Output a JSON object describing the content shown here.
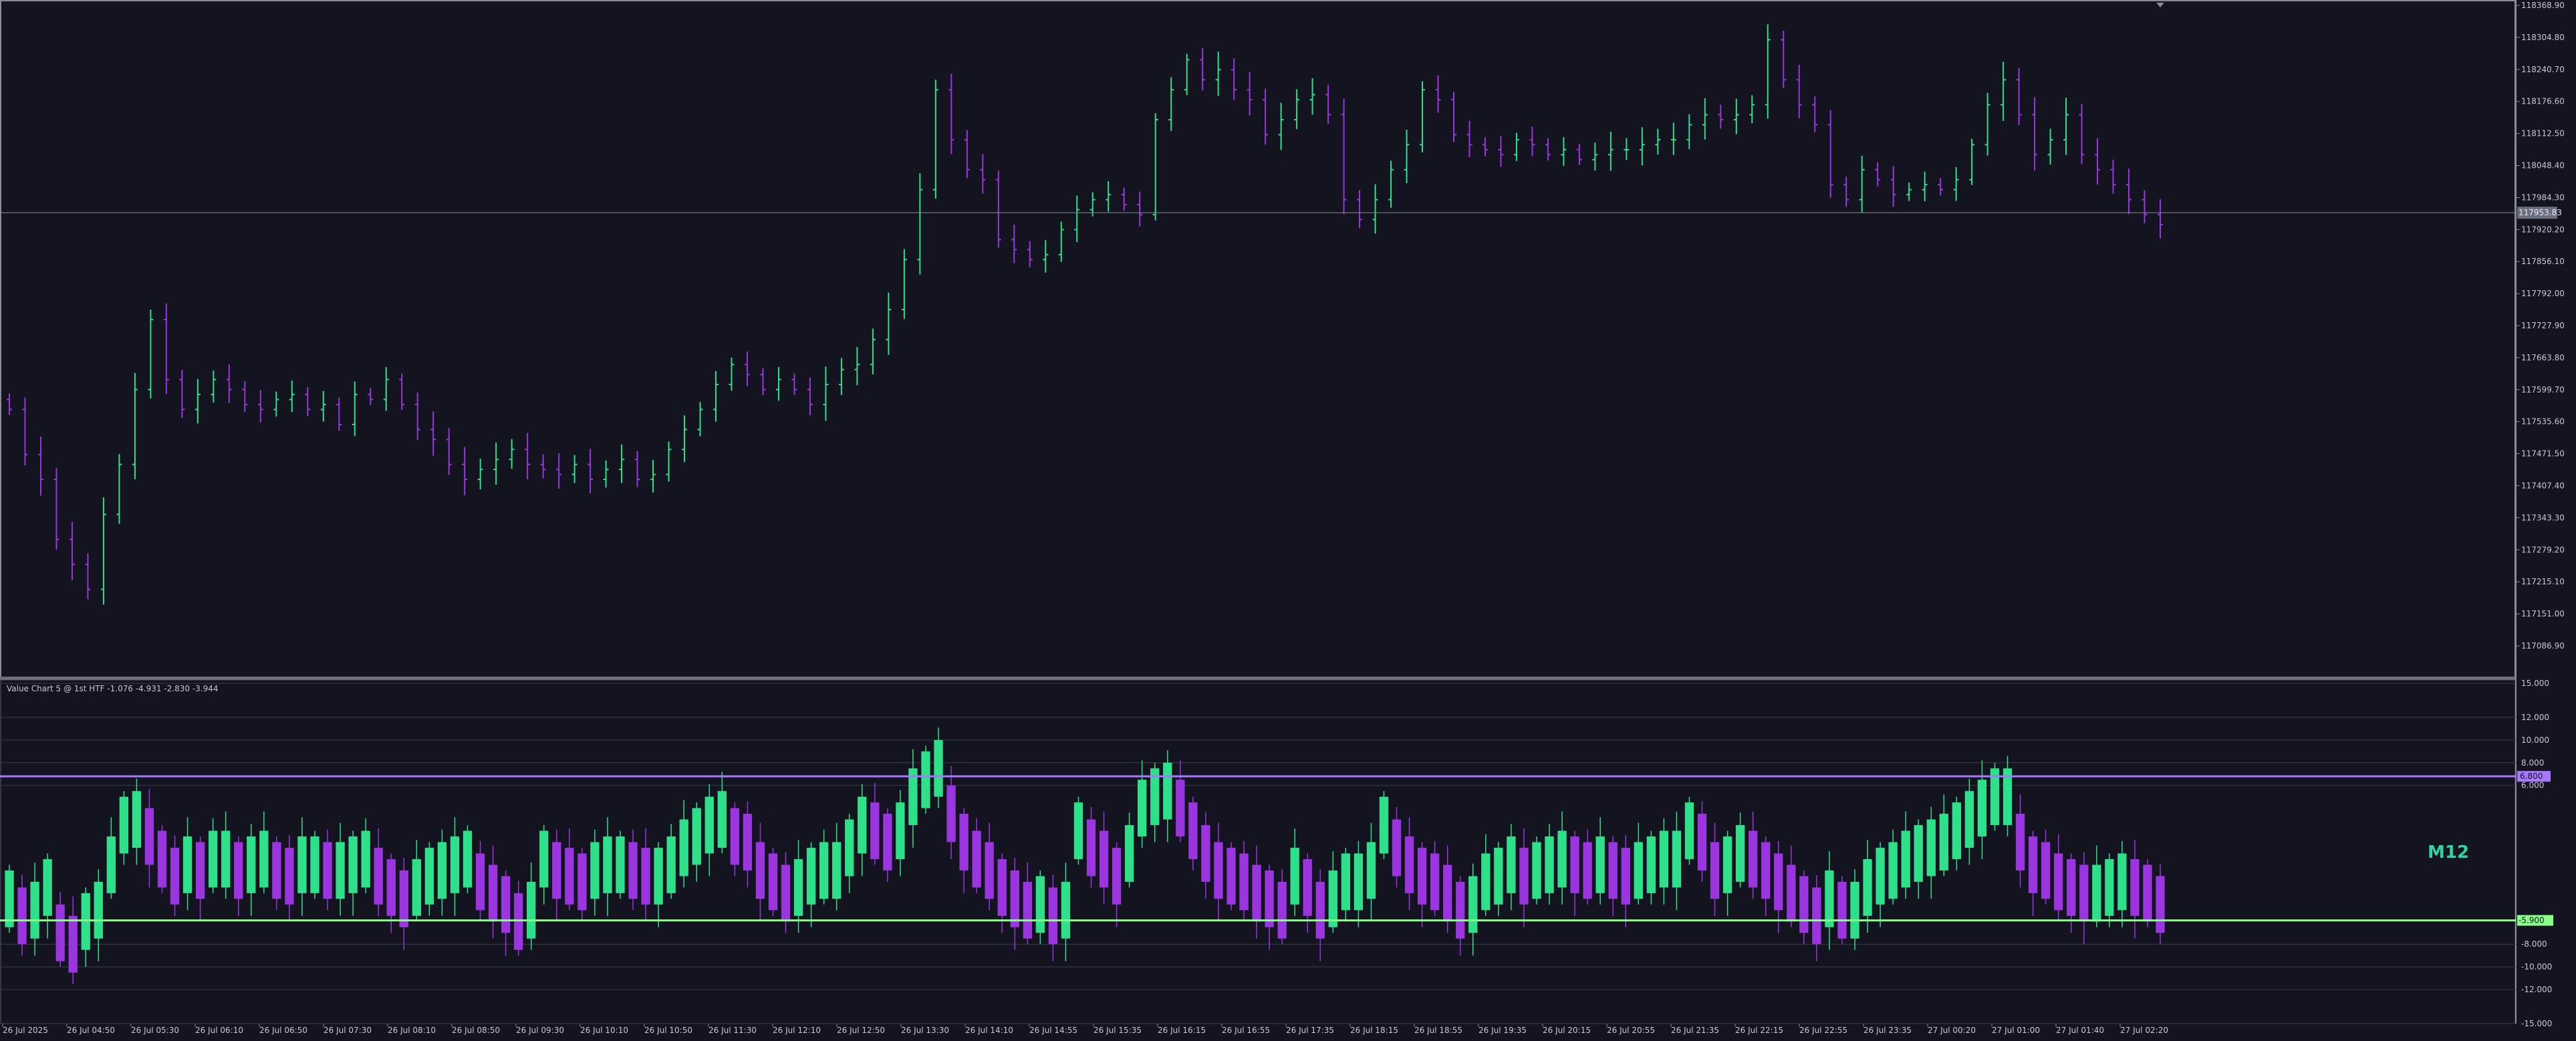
{
  "colors": {
    "background": "#131420",
    "grid": "#3a3c4a",
    "axis_text": "#c8c8d0",
    "bull": "#2fe08a",
    "bear": "#9b35e0",
    "current_price_line": "#8a8c99",
    "ob_level": "#a878ff",
    "os_level": "#8aff8a",
    "timeframe_label": "#2fd4a0"
  },
  "main_chart": {
    "price_axis_labels": [
      "118368.90",
      "118304.80",
      "118240.70",
      "118176.60",
      "118112.50",
      "118048.40",
      "117984.30",
      "117920.20",
      "117856.10",
      "117792.00",
      "117727.90",
      "117663.80",
      "117599.70",
      "117535.60",
      "117471.50",
      "117407.40",
      "117343.30",
      "117279.20",
      "117215.10",
      "117151.00",
      "117086.90"
    ],
    "current_price_label": "117953.83"
  },
  "indicator": {
    "title": "Value Chart 5 @ 1st HTF -1.076 -4.931 -2.830 -3.944",
    "axis_labels": [
      "15.000",
      "12.000",
      "10.000",
      "8.000",
      "6.000",
      "-8.000",
      "-10.000",
      "-12.000",
      "-15.000"
    ],
    "ob_value_label": "6.800",
    "os_value_label": "-5.900",
    "timeframe_label": "M12"
  },
  "time_axis_labels": [
    "26 Jul 2025",
    "26 Jul 04:50",
    "26 Jul 05:30",
    "26 Jul 06:10",
    "26 Jul 06:50",
    "26 Jul 07:30",
    "26 Jul 08:10",
    "26 Jul 08:50",
    "26 Jul 09:30",
    "26 Jul 10:10",
    "26 Jul 10:50",
    "26 Jul 11:30",
    "26 Jul 12:10",
    "26 Jul 12:50",
    "26 Jul 13:30",
    "26 Jul 14:10",
    "26 Jul 14:55",
    "26 Jul 15:35",
    "26 Jul 16:15",
    "26 Jul 16:55",
    "26 Jul 17:35",
    "26 Jul 18:15",
    "26 Jul 18:55",
    "26 Jul 19:35",
    "26 Jul 20:15",
    "26 Jul 20:55",
    "26 Jul 21:35",
    "26 Jul 22:15",
    "26 Jul 22:55",
    "26 Jul 23:35",
    "27 Jul 00:20",
    "27 Jul 01:00",
    "27 Jul 01:40",
    "27 Jul 02:20"
  ],
  "chart_data": [
    {
      "type": "ohlc",
      "y_range": [
        117086.9,
        118368.9
      ],
      "current_price": 117953.83,
      "close_series": [
        117560,
        117470,
        117420,
        117300,
        117250,
        117200,
        117350,
        117450,
        117600,
        117740,
        117620,
        117560,
        117590,
        117620,
        117600,
        117570,
        117560,
        117580,
        117590,
        117560,
        117570,
        117530,
        117590,
        117580,
        117620,
        117570,
        117520,
        117500,
        117450,
        117420,
        117440,
        117460,
        117480,
        117450,
        117440,
        117430,
        117450,
        117420,
        117440,
        117460,
        117420,
        117430,
        117480,
        117520,
        117560,
        117610,
        117650,
        117630,
        117600,
        117620,
        117600,
        117570,
        117610,
        117640,
        117650,
        117700,
        117760,
        117860,
        118000,
        118200,
        118100,
        118040,
        118020,
        117900,
        117880,
        117860,
        117870,
        117920,
        117960,
        117980,
        117990,
        117970,
        117950,
        118140,
        118200,
        118260,
        118220,
        118240,
        118200,
        118180,
        118110,
        118140,
        118180,
        118190,
        118150,
        117980,
        117940,
        117980,
        118040,
        118090,
        118200,
        118180,
        118110,
        118090,
        118080,
        118070,
        118100,
        118090,
        118070,
        118080,
        118060,
        118070,
        118080,
        118080,
        118090,
        118100,
        118100,
        118130,
        118150,
        118140,
        118150,
        118170,
        118300,
        118220,
        118170,
        118130,
        118010,
        117980,
        118040,
        118020,
        117990,
        118000,
        118010,
        118000,
        118020,
        118090,
        118170,
        118220,
        118150,
        118070,
        118100,
        118150,
        118070,
        118040,
        118010,
        117980,
        117950,
        117930
      ],
      "indicator": {
        "type": "bar",
        "y_range": [
          -15,
          15
        ],
        "overbought_level": 6.8,
        "oversold_level": -5.9,
        "values": [
          -4,
          -5.5,
          -5,
          -3,
          -7,
          -8,
          -6,
          -5,
          -1,
          2.5,
          3,
          1.5,
          -0.5,
          -2,
          -1,
          -1.5,
          -0.5,
          -0.5,
          -1.5,
          -1,
          -0.5,
          -1.5,
          -2,
          -1,
          -1,
          -1.5,
          -1.5,
          -1,
          -0.5,
          -2,
          -3,
          -4,
          -3,
          -2,
          -1.5,
          -1,
          -0.5,
          -2.5,
          -3.5,
          -4.5,
          -6,
          -5,
          -0.5,
          -1.5,
          -2,
          -2.5,
          -1.5,
          -1,
          -1,
          -1.5,
          -2,
          -2,
          -1,
          0.5,
          1.5,
          2.5,
          3,
          1.5,
          1,
          -1.5,
          -2.5,
          -3.5,
          -3,
          -2,
          -1.5,
          -1.5,
          0.5,
          2.5,
          2,
          1,
          2,
          5,
          6.5,
          7.5,
          3.5,
          1,
          -0.5,
          -1.5,
          -3,
          -4,
          -5,
          -4.5,
          -5.5,
          -5,
          2,
          0.5,
          -0.5,
          -2,
          0,
          4,
          5,
          5.5,
          4,
          2,
          0,
          -1.5,
          -2,
          -2.5,
          -3.5,
          -4,
          -5,
          -2,
          -3,
          -5,
          -4,
          -2.5,
          -2.5,
          -1.5,
          2.5,
          0.5,
          -1,
          -2,
          -2.5,
          -3.5,
          -5,
          -4.5,
          -2.5,
          -2,
          -1,
          -2,
          -1.5,
          -1,
          -0.5,
          -1,
          -1.5,
          -1,
          -1.5,
          -2,
          -1.5,
          -1,
          -0.5,
          -0.5,
          2,
          1,
          -1.5,
          -1,
          0,
          -0.5,
          -1.5,
          -2.5,
          -3.5,
          -4.5,
          -5.5,
          -4,
          -5,
          -5,
          -3,
          -2,
          -1.5,
          -0.5,
          0,
          0.5,
          1,
          2,
          3,
          4,
          5,
          5,
          1,
          -1,
          -1.5,
          -2.5,
          -3,
          -3.5,
          -3.5,
          -3,
          -2.5,
          -3,
          -3.5,
          -4.5
        ]
      }
    }
  ]
}
